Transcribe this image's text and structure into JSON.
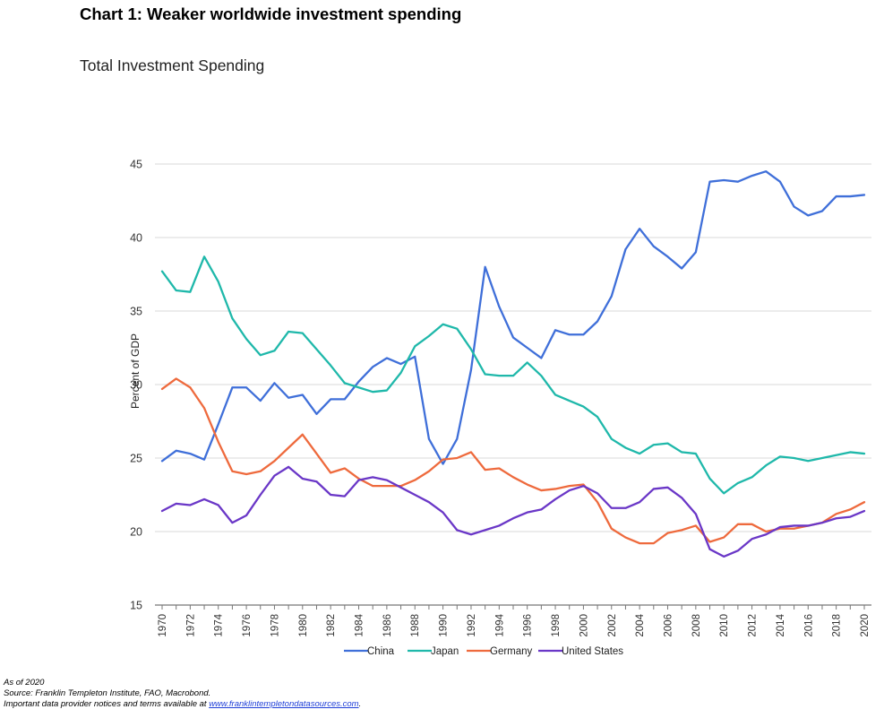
{
  "header": {
    "title": "Chart 1: Weaker worldwide investment spending",
    "subtitle": "Total Investment Spending"
  },
  "footer": {
    "as_of": "As of 2020",
    "source": "Source: Franklin Templeton Institute, FAO, Macrobond.",
    "notice_prefix": "Important data provider notices and terms available at ",
    "link_text": "www.franklintempletondatasources.com",
    "notice_suffix": "."
  },
  "chart_data": {
    "type": "line",
    "title": "Total Investment Spending",
    "xlabel": "",
    "ylabel": "Percent of GDP",
    "x": [
      1970,
      1971,
      1972,
      1973,
      1974,
      1975,
      1976,
      1977,
      1978,
      1979,
      1980,
      1981,
      1982,
      1983,
      1984,
      1985,
      1986,
      1987,
      1988,
      1989,
      1990,
      1991,
      1992,
      1993,
      1994,
      1995,
      1996,
      1997,
      1998,
      1999,
      2000,
      2001,
      2002,
      2003,
      2004,
      2005,
      2006,
      2007,
      2008,
      2009,
      2010,
      2011,
      2012,
      2013,
      2014,
      2015,
      2016,
      2017,
      2018,
      2019,
      2020
    ],
    "xticks": [
      "1970",
      "1972",
      "1974",
      "1976",
      "1978",
      "1980",
      "1982",
      "1984",
      "1986",
      "1988",
      "1990",
      "1992",
      "1994",
      "1996",
      "1998",
      "2000",
      "2002",
      "2004",
      "2006",
      "2008",
      "2010",
      "2012",
      "2014",
      "2016",
      "2018",
      "2020"
    ],
    "yticks": [
      15,
      20,
      25,
      30,
      35,
      40,
      45
    ],
    "ylim": [
      15,
      45
    ],
    "grid": true,
    "legend_position": "bottom",
    "series": [
      {
        "name": "China",
        "color": "#3f6fd9",
        "values": [
          24.8,
          25.5,
          25.3,
          24.9,
          27.3,
          29.8,
          29.8,
          28.9,
          30.1,
          29.1,
          29.3,
          28.0,
          29.0,
          29.0,
          30.2,
          31.2,
          31.8,
          31.4,
          31.9,
          26.3,
          24.6,
          26.3,
          31.0,
          38.0,
          35.3,
          33.2,
          32.5,
          31.8,
          33.7,
          33.4,
          33.4,
          34.3,
          36.0,
          39.2,
          40.6,
          39.4,
          38.7,
          37.9,
          39.0,
          43.8,
          43.9,
          43.8,
          44.2,
          44.5,
          43.8,
          42.1,
          41.5,
          41.8,
          42.8,
          42.8,
          42.9
        ]
      },
      {
        "name": "Japan",
        "color": "#1fb8aa",
        "values": [
          37.7,
          36.4,
          36.3,
          38.7,
          37.0,
          34.5,
          33.1,
          32.0,
          32.3,
          33.6,
          33.5,
          32.4,
          31.3,
          30.1,
          29.8,
          29.5,
          29.6,
          30.8,
          32.6,
          33.3,
          34.1,
          33.8,
          32.4,
          30.7,
          30.6,
          30.6,
          31.5,
          30.6,
          29.3,
          28.9,
          28.5,
          27.8,
          26.3,
          25.7,
          25.3,
          25.9,
          26.0,
          25.4,
          25.3,
          23.6,
          22.6,
          23.3,
          23.7,
          24.5,
          25.1,
          25.0,
          24.8,
          25.0,
          25.2,
          25.4,
          25.3
        ]
      },
      {
        "name": "Germany",
        "color": "#ee6a3d",
        "values": [
          29.7,
          30.4,
          29.8,
          28.4,
          26.1,
          24.1,
          23.9,
          24.1,
          24.8,
          25.7,
          26.6,
          25.3,
          24.0,
          24.3,
          23.6,
          23.1,
          23.1,
          23.1,
          23.5,
          24.1,
          24.9,
          25.0,
          25.4,
          24.2,
          24.3,
          23.7,
          23.2,
          22.8,
          22.9,
          23.1,
          23.2,
          22.0,
          20.2,
          19.6,
          19.2,
          19.2,
          19.9,
          20.1,
          20.4,
          19.3,
          19.6,
          20.5,
          20.5,
          20.0,
          20.2,
          20.2,
          20.4,
          20.6,
          21.2,
          21.5,
          22.0
        ]
      },
      {
        "name": "United States",
        "color": "#6a37c7",
        "values": [
          21.4,
          21.9,
          21.8,
          22.2,
          21.8,
          20.6,
          21.1,
          22.5,
          23.8,
          24.4,
          23.6,
          23.4,
          22.5,
          22.4,
          23.5,
          23.7,
          23.5,
          23.0,
          22.5,
          22.0,
          21.3,
          20.1,
          19.8,
          20.1,
          20.4,
          20.9,
          21.3,
          21.5,
          22.2,
          22.8,
          23.1,
          22.6,
          21.6,
          21.6,
          22.0,
          22.9,
          23.0,
          22.3,
          21.2,
          18.8,
          18.3,
          18.7,
          19.5,
          19.8,
          20.3,
          20.4,
          20.4,
          20.6,
          20.9,
          21.0,
          21.4
        ]
      }
    ]
  }
}
